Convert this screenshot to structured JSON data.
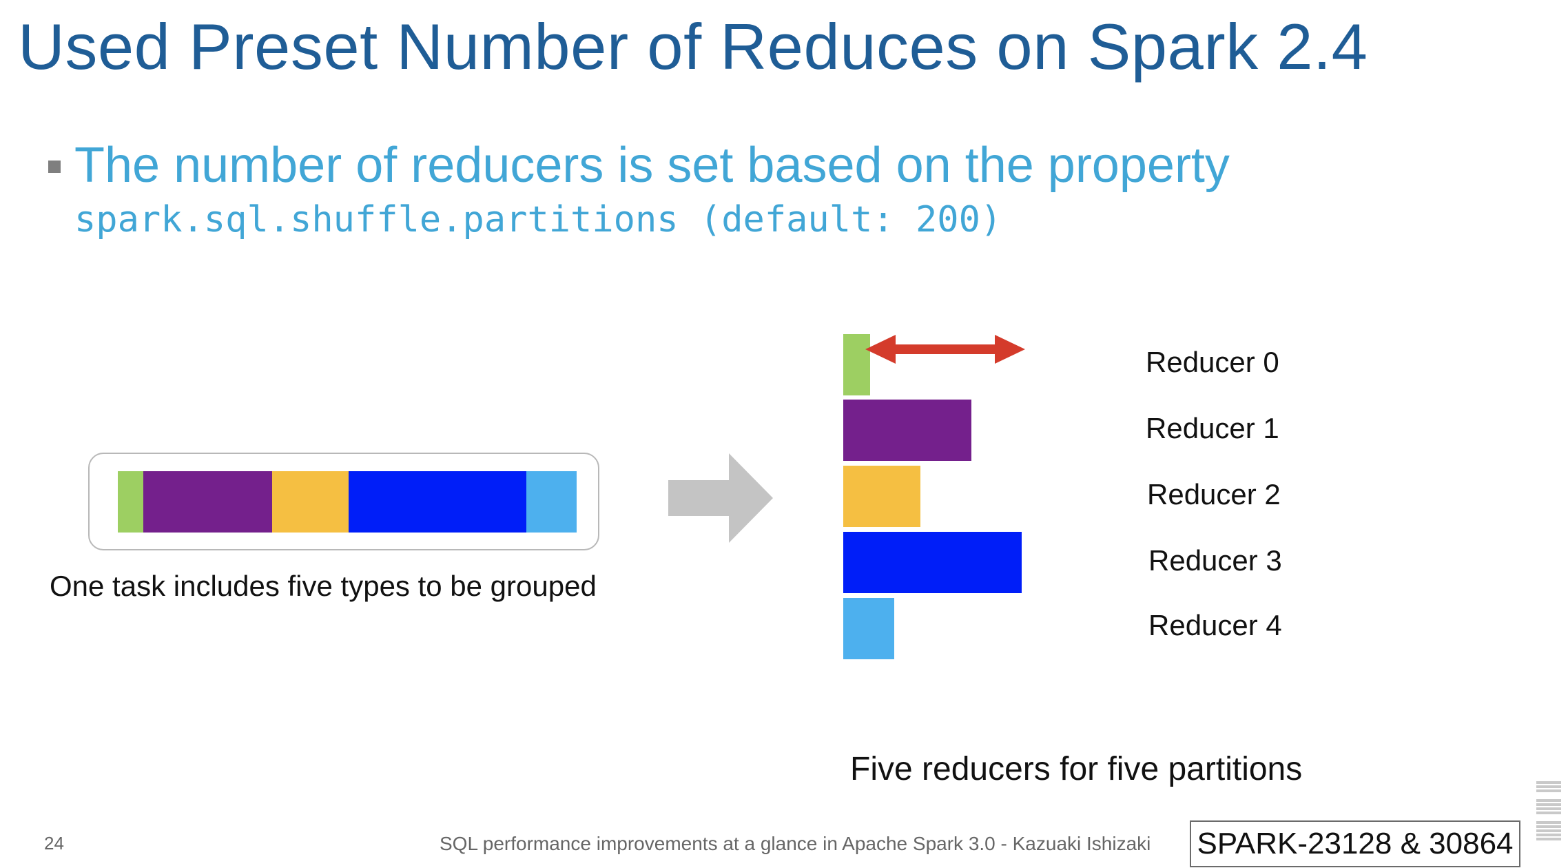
{
  "slide": {
    "title": "Used Preset Number of Reduces on Spark 2.4",
    "bullet_text": "The number of reducers is set based on the property",
    "bullet_code": "spark.sql.shuffle.partitions (default: 200)"
  },
  "diagram": {
    "task_caption": "One task includes five types to be grouped",
    "caption": "Five reducers for five partitions",
    "reducers": [
      {
        "label": "Reducer 0",
        "color": "#9dcf62"
      },
      {
        "label": "Reducer 1",
        "color": "#74208c"
      },
      {
        "label": "Reducer 2",
        "color": "#f5bf42"
      },
      {
        "label": "Reducer 3",
        "color": "#001ef8"
      },
      {
        "label": "Reducer 4",
        "color": "#4db0ee"
      }
    ],
    "arrow_color": "#c4c4c4",
    "size_arrow_color": "#d43b2b"
  },
  "footer": {
    "page_number": "24",
    "text": "SQL performance improvements at a glance in Apache Spark 3.0 - Kazuaki Ishizaki",
    "reference": "SPARK-23128 & 30864"
  }
}
